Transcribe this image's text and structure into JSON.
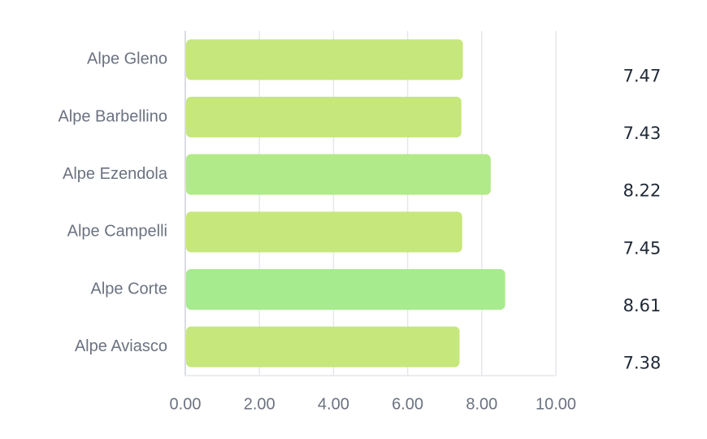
{
  "chart_data": {
    "type": "bar",
    "orientation": "horizontal",
    "categories": [
      "Alpe Gleno",
      "Alpe Barbellino",
      "Alpe Ezendola",
      "Alpe Campelli",
      "Alpe Corte",
      "Alpe Aviasco"
    ],
    "values": [
      7.47,
      7.43,
      8.22,
      7.45,
      8.61,
      7.38
    ],
    "colors": [
      "#c6e77c",
      "#c6e77c",
      "#b1ea89",
      "#c6e77c",
      "#a6eb8e",
      "#c6e77c"
    ],
    "xlim": [
      0,
      10
    ],
    "xticks": [
      {
        "value": 0,
        "label": "0.00"
      },
      {
        "value": 2,
        "label": "2.00"
      },
      {
        "value": 4,
        "label": "4.00"
      },
      {
        "value": 6,
        "label": "6.00"
      },
      {
        "value": 8,
        "label": "8.00"
      },
      {
        "value": 10,
        "label": "10.00"
      }
    ],
    "grid": true
  }
}
